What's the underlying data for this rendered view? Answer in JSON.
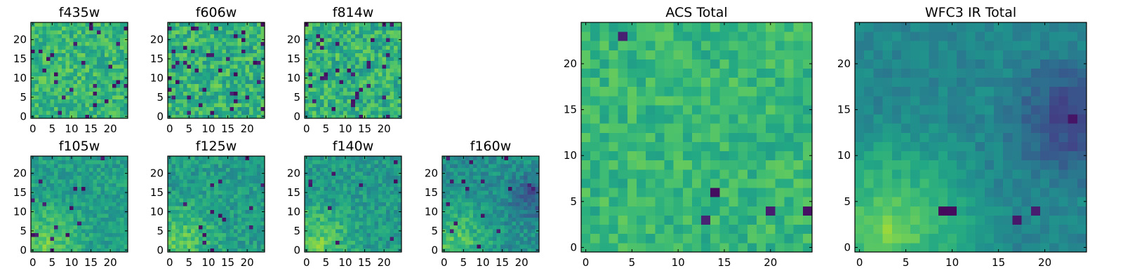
{
  "chart_data": {
    "type": "heatmap",
    "colormap": "viridis",
    "grid_size": 25,
    "grid": false,
    "panels": [
      {
        "id": "f435w",
        "title": "f435w",
        "xticks": [
          0,
          5,
          10,
          15,
          20
        ],
        "yticks": [
          0,
          5,
          10,
          15,
          20
        ],
        "xlim": [
          -0.5,
          24.5
        ],
        "ylim": [
          -0.5,
          24.5
        ],
        "mean_level": 0.66,
        "spread": 0.14,
        "dark_fraction": 0.04,
        "gradient": 0,
        "dark_corner": 0
      },
      {
        "id": "f606w",
        "title": "f606w",
        "xticks": [
          0,
          5,
          10,
          15,
          20
        ],
        "yticks": [
          0,
          5,
          10,
          15,
          20
        ],
        "xlim": [
          -0.5,
          24.5
        ],
        "ylim": [
          -0.5,
          24.5
        ],
        "mean_level": 0.64,
        "spread": 0.16,
        "dark_fraction": 0.06,
        "gradient": 0,
        "dark_corner": 0
      },
      {
        "id": "f814w",
        "title": "f814w",
        "xticks": [
          0,
          5,
          10,
          15,
          20
        ],
        "yticks": [
          0,
          5,
          10,
          15,
          20
        ],
        "xlim": [
          -0.5,
          24.5
        ],
        "ylim": [
          -0.5,
          24.5
        ],
        "mean_level": 0.64,
        "spread": 0.16,
        "dark_fraction": 0.06,
        "gradient": 0,
        "dark_corner": 0
      },
      {
        "id": "f105w",
        "title": "f105w",
        "xticks": [
          0,
          5,
          10,
          15,
          20
        ],
        "yticks": [
          0,
          5,
          10,
          15,
          20
        ],
        "xlim": [
          -0.5,
          24.5
        ],
        "ylim": [
          -0.5,
          24.5
        ],
        "mean_level": 0.56,
        "spread": 0.1,
        "dark_fraction": 0.02,
        "gradient": 0.35,
        "dark_corner": 0
      },
      {
        "id": "f125w",
        "title": "f125w",
        "xticks": [
          0,
          5,
          10,
          15,
          20
        ],
        "yticks": [
          0,
          5,
          10,
          15,
          20
        ],
        "xlim": [
          -0.5,
          24.5
        ],
        "ylim": [
          -0.5,
          24.5
        ],
        "mean_level": 0.55,
        "spread": 0.11,
        "dark_fraction": 0.02,
        "gradient": 0.35,
        "dark_corner": 0
      },
      {
        "id": "f140w",
        "title": "f140w",
        "xticks": [
          0,
          5,
          10,
          15,
          20
        ],
        "yticks": [
          0,
          5,
          10,
          15,
          20
        ],
        "xlim": [
          -0.5,
          24.5
        ],
        "ylim": [
          -0.5,
          24.5
        ],
        "mean_level": 0.54,
        "spread": 0.11,
        "dark_fraction": 0.02,
        "gradient": 0.38,
        "dark_corner": 0
      },
      {
        "id": "f160w",
        "title": "f160w",
        "xticks": [
          0,
          5,
          10,
          15,
          20
        ],
        "yticks": [
          0,
          5,
          10,
          15,
          20
        ],
        "xlim": [
          -0.5,
          24.5
        ],
        "ylim": [
          -0.5,
          24.5
        ],
        "mean_level": 0.5,
        "spread": 0.11,
        "dark_fraction": 0.03,
        "gradient": 0.42,
        "dark_corner": 0.5
      },
      {
        "id": "acs-total",
        "title": "ACS Total",
        "xticks": [
          0,
          5,
          10,
          15,
          20
        ],
        "yticks": [
          0,
          5,
          10,
          15,
          20
        ],
        "xlim": [
          -0.5,
          24.5
        ],
        "ylim": [
          -0.5,
          24.5
        ],
        "mean_level": 0.66,
        "spread": 0.1,
        "dark_fraction": 0.01,
        "gradient": 0,
        "dark_corner": 0
      },
      {
        "id": "wfc3-ir-total",
        "title": "WFC3 IR Total",
        "xticks": [
          0,
          5,
          10,
          15,
          20
        ],
        "yticks": [
          0,
          5,
          10,
          15,
          20
        ],
        "xlim": [
          -0.5,
          24.5
        ],
        "ylim": [
          -0.5,
          24.5
        ],
        "mean_level": 0.46,
        "spread": 0.06,
        "dark_fraction": 0.01,
        "gradient": 0.55,
        "dark_corner": 0.6
      }
    ]
  }
}
